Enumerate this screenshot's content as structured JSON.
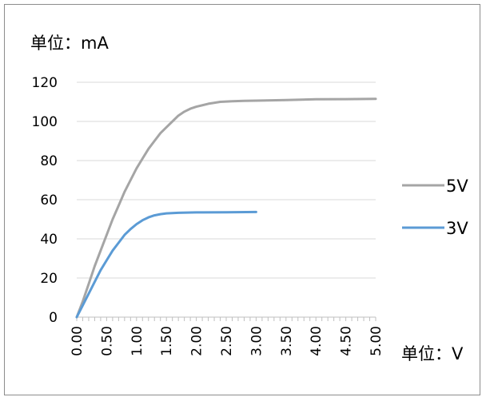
{
  "chart_data": {
    "type": "line",
    "ylabel": "单位：mA",
    "xlabel": "单位：V",
    "xlim": [
      0,
      5
    ],
    "ylim": [
      0,
      120
    ],
    "y_ticks": [
      0,
      20,
      40,
      60,
      80,
      100,
      120
    ],
    "x_tick_labels": [
      "0.00",
      "0.50",
      "1.00",
      "1.50",
      "2.00",
      "2.50",
      "3.00",
      "3.50",
      "4.00",
      "4.50",
      "5.00"
    ],
    "grid": true,
    "legend_position": "right",
    "series": [
      {
        "name": "5V",
        "color": "#a5a5a5",
        "points": [
          [
            0.0,
            0
          ],
          [
            0.1,
            8
          ],
          [
            0.2,
            17
          ],
          [
            0.3,
            26
          ],
          [
            0.4,
            34
          ],
          [
            0.5,
            42
          ],
          [
            0.6,
            50
          ],
          [
            0.7,
            57
          ],
          [
            0.8,
            64
          ],
          [
            0.9,
            70
          ],
          [
            1.0,
            76
          ],
          [
            1.1,
            81
          ],
          [
            1.2,
            86
          ],
          [
            1.3,
            90
          ],
          [
            1.4,
            94
          ],
          [
            1.5,
            97
          ],
          [
            1.6,
            100
          ],
          [
            1.7,
            103
          ],
          [
            1.8,
            105
          ],
          [
            1.9,
            106.5
          ],
          [
            2.0,
            107.5
          ],
          [
            2.2,
            109
          ],
          [
            2.4,
            110
          ],
          [
            2.6,
            110.3
          ],
          [
            2.8,
            110.5
          ],
          [
            3.0,
            110.6
          ],
          [
            3.5,
            110.9
          ],
          [
            4.0,
            111.3
          ],
          [
            4.5,
            111.4
          ],
          [
            5.0,
            111.5
          ]
        ]
      },
      {
        "name": "3V",
        "color": "#5b9bd5",
        "points": [
          [
            0.0,
            0
          ],
          [
            0.1,
            6
          ],
          [
            0.2,
            12
          ],
          [
            0.3,
            18
          ],
          [
            0.4,
            24
          ],
          [
            0.5,
            29
          ],
          [
            0.6,
            34
          ],
          [
            0.7,
            38
          ],
          [
            0.8,
            42
          ],
          [
            0.9,
            45
          ],
          [
            1.0,
            47.5
          ],
          [
            1.1,
            49.5
          ],
          [
            1.2,
            51
          ],
          [
            1.3,
            52
          ],
          [
            1.4,
            52.6
          ],
          [
            1.5,
            53
          ],
          [
            1.7,
            53.3
          ],
          [
            2.0,
            53.5
          ],
          [
            2.5,
            53.6
          ],
          [
            3.0,
            53.7
          ]
        ]
      }
    ]
  }
}
